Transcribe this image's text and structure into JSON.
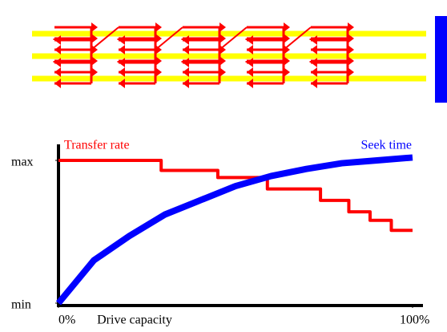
{
  "chart_data": {
    "type": "line",
    "xlabel": "Drive capacity",
    "x": [
      0,
      29,
      29,
      45,
      45,
      59,
      59,
      74,
      74,
      82,
      82,
      88,
      88,
      94,
      94,
      100
    ],
    "series": [
      {
        "name": "Transfer rate",
        "color": "#ff0000",
        "x": [
          0,
          29,
          29,
          45,
          45,
          59,
          59,
          74,
          74,
          82,
          82,
          88,
          88,
          94,
          94,
          100
        ],
        "values": [
          1,
          1,
          0.93,
          0.93,
          0.88,
          0.88,
          0.8,
          0.8,
          0.72,
          0.72,
          0.64,
          0.64,
          0.58,
          0.58,
          0.51,
          0.51
        ]
      },
      {
        "name": "Seek time",
        "color": "#0000ff",
        "x": [
          0,
          10,
          20,
          30,
          40,
          50,
          60,
          70,
          80,
          90,
          100
        ],
        "values": [
          0,
          0.3,
          0.47,
          0.62,
          0.72,
          0.82,
          0.89,
          0.94,
          0.98,
          1.0,
          1.02
        ]
      }
    ],
    "xlim": [
      0,
      100
    ],
    "xticks": [
      {
        "value": 0,
        "label": "0%"
      },
      {
        "value": 100,
        "label": "100%"
      }
    ],
    "ylim": [
      0,
      1.11
    ],
    "yticks": [
      {
        "value": 0,
        "label": "min"
      },
      {
        "value": 1,
        "label": "max"
      }
    ]
  }
}
